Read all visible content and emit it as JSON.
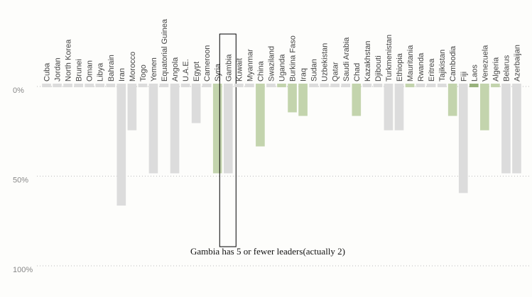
{
  "chart_data": {
    "type": "bar",
    "categories": [
      "Cuba",
      "Jordan",
      "North Korea",
      "Brunei",
      "Oman",
      "Libya",
      "Bahrain",
      "Iran",
      "Morocco",
      "Togo",
      "Yemen",
      "Equatorial Guinea",
      "Angola",
      "U.A.E.",
      "Egypt",
      "Cameroon",
      "Syria",
      "Gambia",
      "Kuwait",
      "Myanmar",
      "China",
      "Swaziland",
      "Uganda",
      "Burkina Faso",
      "Iraq",
      "Sudan",
      "Uzbekistan",
      "Qatar",
      "Saudi Arabia",
      "Chad",
      "Kazakhstan",
      "Djibouti",
      "Turkmenistan",
      "Ethiopia",
      "Mauritania",
      "Rwanda",
      "Eritrea",
      "Tajikistan",
      "Cambodia",
      "Fiji",
      "Laos",
      "Venezuela",
      "Algeria",
      "Belarus",
      "Azerbaijan"
    ],
    "values": [
      2,
      2,
      2,
      2,
      2,
      2,
      2,
      68,
      26,
      2,
      50,
      2,
      50,
      2,
      22,
      2,
      50,
      50,
      2,
      2,
      35,
      2,
      2,
      16,
      18,
      2,
      2,
      2,
      2,
      18,
      2,
      2,
      26,
      26,
      2,
      2,
      2,
      2,
      18,
      61,
      2,
      26,
      2,
      50,
      50
    ],
    "colors": [
      "#dcdcdc",
      "#dcdcdc",
      "#dcdcdc",
      "#dcdcdc",
      "#dcdcdc",
      "#dcdcdc",
      "#dcdcdc",
      "#dcdcdc",
      "#dcdcdc",
      "#dcdcdc",
      "#dcdcdc",
      "#dcdcdc",
      "#dcdcdc",
      "#dcdcdc",
      "#dcdcdc",
      "#dcdcdc",
      "#c3d4ad",
      "#dcdcdc",
      "#dcdcdc",
      "#dcdcdc",
      "#c3d4ad",
      "#dcdcdc",
      "#c3d4ad",
      "#c3d4ad",
      "#c3d4ad",
      "#dcdcdc",
      "#dcdcdc",
      "#dcdcdc",
      "#dcdcdc",
      "#c3d4ad",
      "#dcdcdc",
      "#dcdcdc",
      "#dcdcdc",
      "#dcdcdc",
      "#c3d4ad",
      "#dcdcdc",
      "#dcdcdc",
      "#dcdcdc",
      "#c3d4ad",
      "#dcdcdc",
      "#98b27c",
      "#c3d4ad",
      "#c3d4ad",
      "#dcdcdc",
      "#dcdcdc"
    ],
    "ylim": [
      0,
      100
    ],
    "yticks": [
      {
        "value": 0,
        "label": "0%"
      },
      {
        "value": 50,
        "label": "50%"
      },
      {
        "value": 100,
        "label": "100%"
      }
    ],
    "grid": true,
    "annotation": "Gambia has 5 or fewer leaders(actually 2)",
    "highlight": "Gambia"
  }
}
